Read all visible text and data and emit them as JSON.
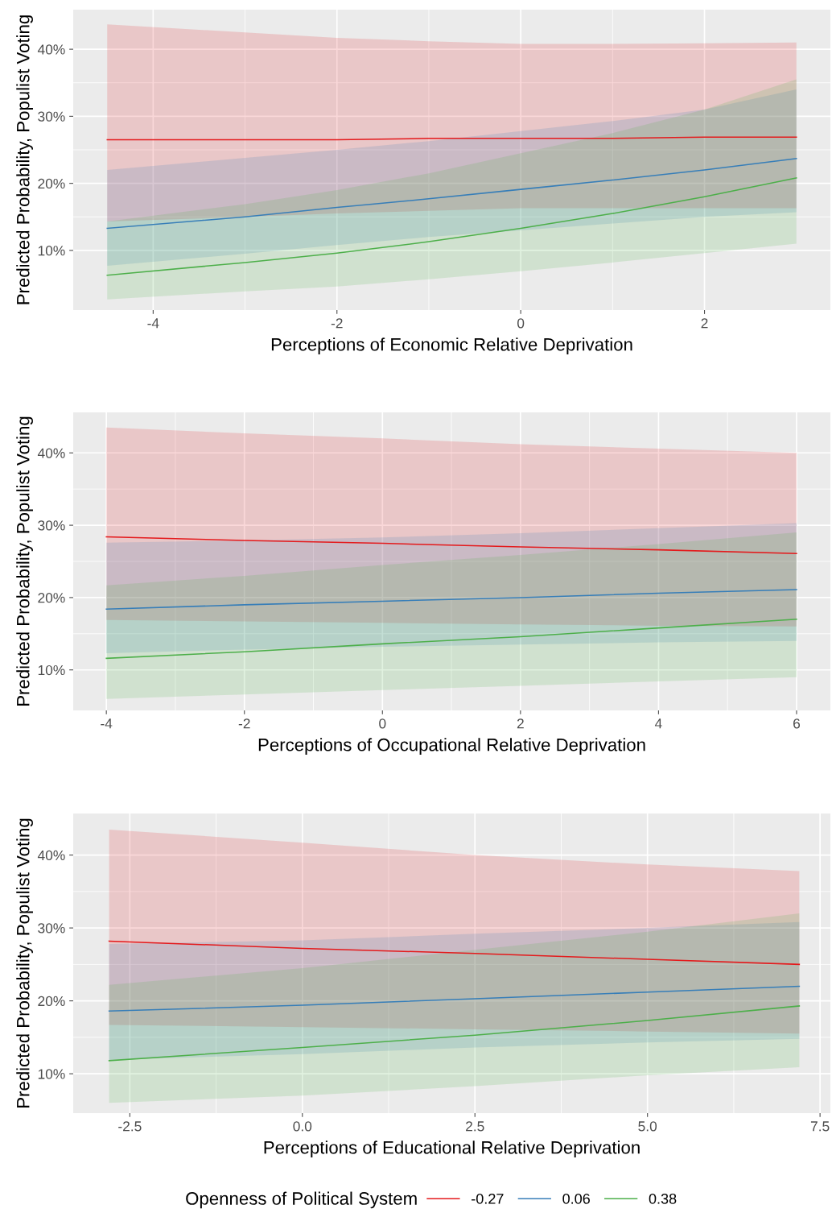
{
  "chart_data": [
    {
      "type": "line",
      "xlabel": "Perceptions of Economic Relative Deprivation",
      "ylabel": "Predicted Probability, Populist Voting",
      "x": [
        -4.5,
        -3,
        -2,
        -1,
        0,
        1,
        2,
        3
      ],
      "xlim": [
        -4.87,
        3.37
      ],
      "xticks": [
        -4,
        -2,
        0,
        2
      ],
      "ylim": [
        1.1,
        45.9
      ],
      "yticks": [
        {
          "value": 10,
          "label": "10%"
        },
        {
          "value": 20,
          "label": "20%"
        },
        {
          "value": 30,
          "label": "30%"
        },
        {
          "value": 40,
          "label": "40%"
        }
      ],
      "grid": true,
      "series": [
        {
          "color": "#e41a1c",
          "values": [
            26.5,
            26.5,
            26.5,
            26.7,
            26.7,
            26.7,
            26.9,
            26.9
          ],
          "lower": [
            14.3,
            15.0,
            15.5,
            15.9,
            16.3,
            16.3,
            16.3,
            16.3
          ],
          "upper": [
            43.7,
            42.5,
            41.7,
            41.2,
            40.8,
            40.8,
            40.9,
            41.0
          ]
        },
        {
          "color": "#377eb8",
          "values": [
            13.3,
            15.0,
            16.4,
            17.7,
            19.1,
            20.5,
            22.0,
            23.7
          ],
          "lower": [
            7.7,
            9.5,
            10.8,
            12.0,
            13.0,
            14.0,
            15.0,
            15.7
          ],
          "upper": [
            22.0,
            23.8,
            25.0,
            26.3,
            27.8,
            29.3,
            31.0,
            34.0
          ]
        },
        {
          "color": "#4daf4a",
          "values": [
            6.3,
            8.2,
            9.6,
            11.3,
            13.3,
            15.5,
            18.0,
            20.8
          ],
          "lower": [
            2.7,
            3.9,
            4.6,
            5.7,
            6.9,
            8.2,
            9.6,
            11.0
          ],
          "upper": [
            14.3,
            16.9,
            19.0,
            21.5,
            24.5,
            27.5,
            31.0,
            35.5
          ]
        }
      ]
    },
    {
      "type": "line",
      "xlabel": "Perceptions of Occupational Relative Deprivation",
      "ylabel": "Predicted Probability, Populist Voting",
      "x": [
        -4,
        -2,
        0,
        2,
        4,
        6
      ],
      "xlim": [
        -4.48,
        6.49
      ],
      "xticks": [
        -4,
        -2,
        0,
        2,
        4,
        6
      ],
      "ylim": [
        4.4,
        45.6
      ],
      "yticks": [
        {
          "value": 10,
          "label": "10%"
        },
        {
          "value": 20,
          "label": "20%"
        },
        {
          "value": 30,
          "label": "30%"
        },
        {
          "value": 40,
          "label": "40%"
        }
      ],
      "grid": true,
      "series": [
        {
          "color": "#e41a1c",
          "values": [
            28.4,
            27.9,
            27.5,
            27.0,
            26.6,
            26.1
          ],
          "lower": [
            16.9,
            16.7,
            16.5,
            16.3,
            16.1,
            16.0
          ],
          "upper": [
            43.5,
            42.7,
            42.0,
            41.2,
            40.6,
            40.0
          ]
        },
        {
          "color": "#377eb8",
          "values": [
            18.4,
            19.0,
            19.5,
            20.0,
            20.6,
            21.1
          ],
          "lower": [
            12.3,
            12.8,
            13.2,
            13.5,
            13.8,
            14.0
          ],
          "upper": [
            27.6,
            27.9,
            28.3,
            28.9,
            29.6,
            30.3
          ]
        },
        {
          "color": "#4daf4a",
          "values": [
            11.6,
            12.5,
            13.6,
            14.6,
            15.8,
            17.0
          ],
          "lower": [
            6.0,
            6.6,
            7.2,
            7.8,
            8.4,
            9.0
          ],
          "upper": [
            21.7,
            23.0,
            24.5,
            25.9,
            27.4,
            29.0
          ]
        }
      ]
    },
    {
      "type": "line",
      "xlabel": "Perceptions of Educational Relative Deprivation",
      "ylabel": "Predicted Probability, Populist Voting",
      "legend_title": "Openness of Political System",
      "legend": "bottom",
      "x": [
        -2.8,
        0,
        2.5,
        5,
        7.2
      ],
      "xlim": [
        -3.32,
        7.65
      ],
      "xticks": [
        {
          "value": -2.5,
          "label": "-2.5"
        },
        {
          "value": 0,
          "label": "0.0"
        },
        {
          "value": 2.5,
          "label": "2.5"
        },
        {
          "value": 5,
          "label": "5.0"
        },
        {
          "value": 7.5,
          "label": "7.5"
        }
      ],
      "ylim": [
        4.6,
        45.7
      ],
      "yticks": [
        {
          "value": 10,
          "label": "10%"
        },
        {
          "value": 20,
          "label": "20%"
        },
        {
          "value": 30,
          "label": "30%"
        },
        {
          "value": 40,
          "label": "40%"
        }
      ],
      "grid": true,
      "series": [
        {
          "name": "-0.27",
          "color": "#e41a1c",
          "values": [
            28.2,
            27.2,
            26.5,
            25.7,
            25.0
          ],
          "lower": [
            16.7,
            16.4,
            16.1,
            15.8,
            15.5
          ],
          "upper": [
            43.5,
            41.7,
            40.0,
            38.7,
            37.8
          ]
        },
        {
          "name": "0.06",
          "color": "#377eb8",
          "values": [
            18.6,
            19.4,
            20.3,
            21.2,
            22.0
          ],
          "lower": [
            11.9,
            12.7,
            13.6,
            14.3,
            14.8
          ],
          "upper": [
            27.8,
            28.3,
            29.2,
            30.0,
            30.8
          ]
        },
        {
          "name": "0.38",
          "color": "#4daf4a",
          "values": [
            11.8,
            13.6,
            15.3,
            17.3,
            19.3
          ],
          "lower": [
            6.0,
            7.0,
            8.3,
            9.8,
            10.9
          ],
          "upper": [
            22.2,
            24.5,
            27.0,
            29.5,
            32.0
          ]
        }
      ]
    }
  ]
}
